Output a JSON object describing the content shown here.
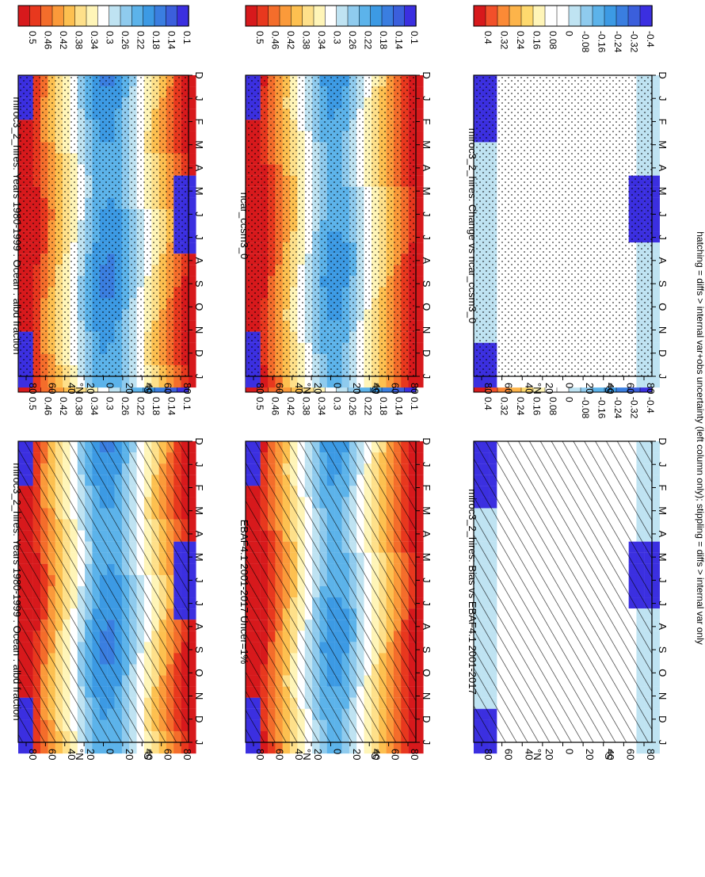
{
  "figure": {
    "footnote": "hatching = diffs > internal var+obs uncertainty (left column only); stippling = diffs > internal var only",
    "orientation": "rotated 90 degrees clockwise"
  },
  "chart_data": [
    {
      "type": "heatmap",
      "panel": "left-top",
      "title": "miroc3_2_hires: Years 1980-1999 : Ocean : albd fraction",
      "x_ticks": [
        "D",
        "J",
        "F",
        "M",
        "A",
        "M",
        "J",
        "J",
        "A",
        "S",
        "O",
        "N",
        "D",
        "J"
      ],
      "y_ticks": [
        "80",
        "60",
        "40",
        "20",
        "0",
        "20",
        "40",
        "60",
        "80"
      ],
      "y_hemisphere_labels": [
        "°N",
        "°S"
      ],
      "colorbar": {
        "labels": [
          "0.5",
          "0.46",
          "0.42",
          "0.38",
          "0.34",
          "0.3",
          "0.26",
          "0.22",
          "0.18",
          "0.14",
          "0.1"
        ]
      },
      "overlay": "hatching"
    },
    {
      "type": "heatmap",
      "panel": "left-middle",
      "title": "EBAF4.1 2001-2017 Uncer=1%",
      "x_ticks": [
        "D",
        "J",
        "F",
        "M",
        "A",
        "M",
        "J",
        "J",
        "A",
        "S",
        "O",
        "N",
        "D",
        "J"
      ],
      "y_ticks": [
        "80",
        "60",
        "40",
        "20",
        "0",
        "20",
        "40",
        "60",
        "80"
      ],
      "y_hemisphere_labels": [
        "°N",
        "°S"
      ],
      "colorbar": {
        "labels": [
          "0.5",
          "0.46",
          "0.42",
          "0.38",
          "0.34",
          "0.3",
          "0.26",
          "0.22",
          "0.18",
          "0.14",
          "0.1"
        ]
      },
      "overlay": "hatching"
    },
    {
      "type": "heatmap",
      "panel": "left-bottom",
      "title": "miroc3_2_hires: Bias vs EBAF4.1 2001-2017",
      "x_ticks": [
        "D",
        "J",
        "F",
        "M",
        "A",
        "M",
        "J",
        "J",
        "A",
        "S",
        "O",
        "N",
        "D",
        "J"
      ],
      "y_ticks": [
        "80",
        "60",
        "40",
        "20",
        "0",
        "20",
        "40",
        "60",
        "80"
      ],
      "y_hemisphere_labels": [
        "°N",
        "°S"
      ],
      "colorbar": {
        "labels": [
          "0.4",
          "0.32",
          "0.24",
          "0.16",
          "0.08",
          "0",
          "-0.08",
          "-0.16",
          "-0.24",
          "-0.32",
          "-0.4"
        ]
      },
      "overlay": "hatching"
    },
    {
      "type": "heatmap",
      "panel": "right-top",
      "title": "miroc3_2_hires: Years 1980-1999 : Ocean : albd fraction",
      "x_ticks": [
        "D",
        "J",
        "F",
        "M",
        "A",
        "M",
        "J",
        "J",
        "A",
        "S",
        "O",
        "N",
        "D",
        "J"
      ],
      "y_ticks": [
        "80",
        "60",
        "40",
        "20",
        "0",
        "20",
        "40",
        "60",
        "80"
      ],
      "y_hemisphere_labels": [
        "°N",
        "°S"
      ],
      "colorbar": {
        "labels": [
          "0.5",
          "0.46",
          "0.42",
          "0.38",
          "0.34",
          "0.3",
          "0.26",
          "0.22",
          "0.18",
          "0.14",
          "0.1"
        ]
      },
      "overlay": "stippling"
    },
    {
      "type": "heatmap",
      "panel": "right-middle",
      "title": "ncar_ccsm3_0",
      "x_ticks": [
        "D",
        "J",
        "F",
        "M",
        "A",
        "M",
        "J",
        "J",
        "A",
        "S",
        "O",
        "N",
        "D",
        "J"
      ],
      "y_ticks": [
        "80",
        "60",
        "40",
        "20",
        "0",
        "20",
        "40",
        "60",
        "80"
      ],
      "y_hemisphere_labels": [
        "°N",
        "°S"
      ],
      "colorbar": {
        "labels": [
          "0.5",
          "0.46",
          "0.42",
          "0.38",
          "0.34",
          "0.3",
          "0.26",
          "0.22",
          "0.18",
          "0.14",
          "0.1"
        ]
      },
      "overlay": "stippling"
    },
    {
      "type": "heatmap",
      "panel": "right-bottom",
      "title": "miroc3_2_hires: Change vs ncar_ccsm3_0",
      "x_ticks": [
        "D",
        "J",
        "F",
        "M",
        "A",
        "M",
        "J",
        "J",
        "A",
        "S",
        "O",
        "N",
        "D",
        "J"
      ],
      "y_ticks": [
        "80",
        "60",
        "40",
        "20",
        "0",
        "20",
        "40",
        "60",
        "80"
      ],
      "y_hemisphere_labels": [
        "°N",
        "°S"
      ],
      "colorbar": {
        "labels": [
          "0.4",
          "0.32",
          "0.24",
          "0.16",
          "0.08",
          "0",
          "-0.08",
          "-0.16",
          "-0.24",
          "-0.32",
          "-0.4"
        ]
      },
      "overlay": "stippling"
    }
  ],
  "colors": {
    "abs_scale": [
      "#d7191c",
      "#e8381e",
      "#f46d2b",
      "#fb9a3a",
      "#fdc050",
      "#fee08a",
      "#fff5b8",
      "#ffffff",
      "#bfe3f2",
      "#8fcbee",
      "#5cb3ea",
      "#3c9ae4",
      "#3a7ee0",
      "#3b5fdc",
      "#3b2fe0"
    ],
    "diff_scale": [
      "#d7191c",
      "#f2502a",
      "#fb8a36",
      "#fdb44a",
      "#fed96e",
      "#fff5b8",
      "#ffffff",
      "#ffffff",
      "#bfe3f2",
      "#8fcbee",
      "#5cb3ea",
      "#3c9ae4",
      "#3a7ee0",
      "#3b5fdc",
      "#3b2fe0"
    ]
  }
}
